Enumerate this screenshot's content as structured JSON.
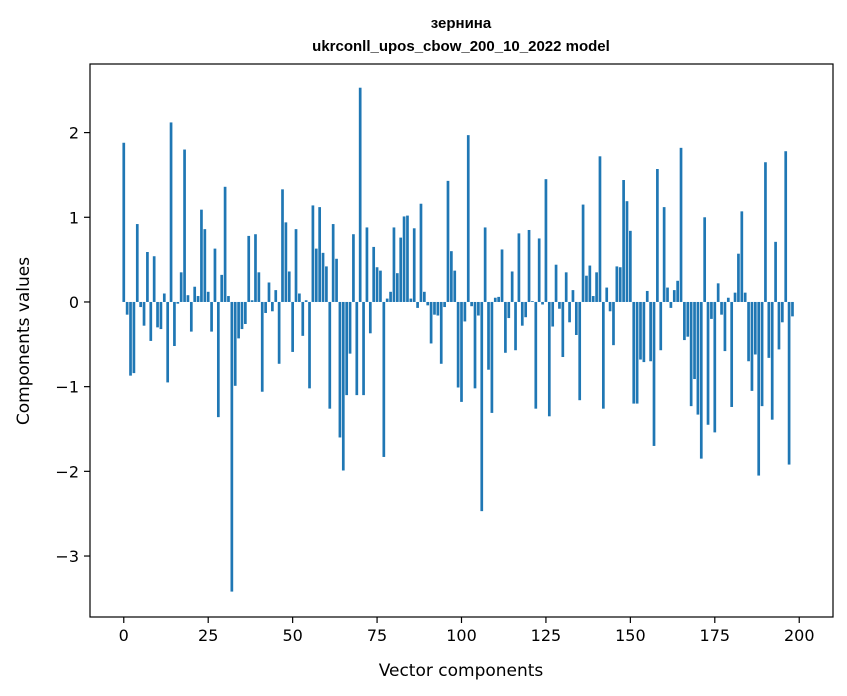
{
  "chart_data": {
    "type": "bar",
    "title_line1": "зернина",
    "title_line2": "ukrconll_upos_cbow_200_10_2022 model",
    "xlabel": "Vector components",
    "ylabel": "Components values",
    "xlim": [
      -10,
      210
    ],
    "ylim": [
      -3.72,
      2.81
    ],
    "xticks": [
      0,
      25,
      50,
      75,
      100,
      125,
      150,
      175,
      200
    ],
    "yticks": [
      -3,
      -2,
      -1,
      0,
      1,
      2
    ],
    "ytick_labels": [
      "−3",
      "−2",
      "−1",
      "0",
      "1",
      "2"
    ],
    "bar_color": "#1f77b4",
    "grid": false,
    "values": [
      1.88,
      -0.15,
      -0.87,
      -0.84,
      0.92,
      -0.06,
      -0.28,
      0.59,
      -0.46,
      0.54,
      -0.3,
      -0.32,
      0.1,
      -0.95,
      2.12,
      -0.52,
      -0.02,
      0.35,
      1.8,
      0.08,
      -0.35,
      0.18,
      0.07,
      1.09,
      0.86,
      0.12,
      -0.35,
      0.63,
      -1.36,
      0.32,
      1.36,
      0.07,
      -3.42,
      -0.99,
      -0.43,
      -0.32,
      -0.26,
      0.78,
      0.02,
      0.8,
      0.35,
      -1.06,
      -0.13,
      0.23,
      -0.11,
      0.14,
      -0.73,
      1.33,
      0.94,
      0.36,
      -0.59,
      0.86,
      0.1,
      -0.4,
      0.02,
      -1.02,
      1.14,
      0.63,
      1.12,
      0.58,
      0.42,
      -1.26,
      0.92,
      0.51,
      -1.6,
      -1.99,
      -1.1,
      -0.61,
      0.8,
      -1.1,
      2.53,
      -1.1,
      0.88,
      -0.37,
      0.65,
      0.41,
      0.37,
      -1.83,
      0.04,
      0.12,
      0.88,
      0.34,
      0.76,
      1.01,
      1.02,
      0.04,
      0.87,
      -0.07,
      1.16,
      0.12,
      -0.04,
      -0.49,
      -0.15,
      -0.16,
      -0.73,
      -0.06,
      1.43,
      0.6,
      0.37,
      -1.01,
      -1.18,
      -0.23,
      1.97,
      -0.05,
      -1.02,
      -0.16,
      -2.47,
      0.88,
      -0.8,
      -1.31,
      0.05,
      0.06,
      0.62,
      -0.6,
      -0.19,
      0.36,
      -0.57,
      0.81,
      -0.28,
      -0.18,
      0.85,
      0.01,
      -1.26,
      0.75,
      -0.03,
      1.45,
      -1.35,
      -0.29,
      0.44,
      -0.08,
      -0.65,
      0.35,
      -0.24,
      0.14,
      -0.39,
      -1.16,
      1.15,
      0.31,
      0.43,
      0.07,
      0.35,
      1.72,
      -1.26,
      0.17,
      -0.11,
      -0.51,
      0.42,
      0.41,
      1.44,
      1.19,
      0.84,
      -1.2,
      -1.2,
      -0.68,
      -0.71,
      0.13,
      -0.7,
      -1.7,
      1.57,
      -0.57,
      1.12,
      0.17,
      -0.07,
      0.14,
      0.25,
      1.82,
      -0.45,
      -0.41,
      -1.23,
      -0.91,
      -1.33,
      -1.85,
      1.0,
      -1.45,
      -0.2,
      -1.54,
      0.22,
      -0.15,
      -0.58,
      0.05,
      -1.24,
      0.11,
      0.57,
      1.07,
      0.11,
      -0.7,
      -1.05,
      -0.62,
      -2.05,
      -1.23,
      1.65,
      -0.66,
      -1.39,
      0.71,
      -0.56,
      -0.24,
      1.78,
      -1.92,
      -0.17
    ]
  }
}
